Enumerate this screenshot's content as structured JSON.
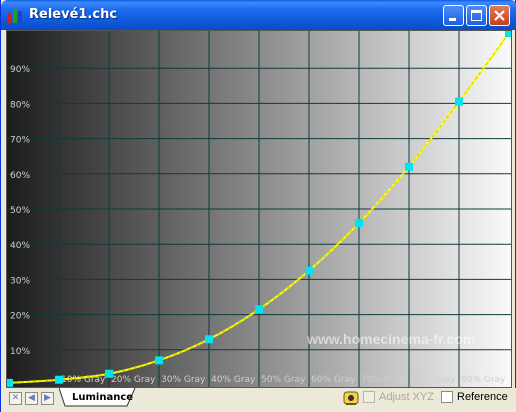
{
  "window": {
    "title": "Relevé1.chc",
    "buttons": {
      "minimize_icon": "minimize-icon",
      "maximize_icon": "maximize-icon",
      "close_icon": "close-icon"
    }
  },
  "watermark": "www.homecinema-fr.com",
  "tab": {
    "label": "Luminance"
  },
  "statusbar": {
    "adjust_label": "Adjust XYZ",
    "reference_label": "Reference",
    "adjust_checked": false,
    "reference_checked": false
  },
  "colors": {
    "curve": "#ffff00",
    "curve_dash": "#cccc00",
    "markers": "#00e5f0",
    "grid": "#0f3a3a",
    "label": "#cfcfcf"
  },
  "chart_data": {
    "type": "line",
    "y_ticks": [
      "10%",
      "20%",
      "30%",
      "40%",
      "50%",
      "60%",
      "70%",
      "80%",
      "90%"
    ],
    "x_ticks": [
      "10% Gray",
      "20% Gray",
      "30% Gray",
      "40% Gray",
      "50% Gray",
      "60% Gray",
      "70% Gray",
      "80% Gray",
      "90% Gray"
    ],
    "ylim": [
      0,
      100
    ],
    "xlim": [
      0,
      100
    ],
    "grid": true,
    "series": [
      {
        "x": [
          0,
          10,
          20,
          30,
          40,
          50,
          60,
          70,
          80,
          90,
          100
        ],
        "y": [
          0.6,
          1.5,
          3.2,
          7.0,
          13.0,
          21.5,
          32.5,
          46.0,
          62.0,
          80.5,
          100.0
        ]
      }
    ]
  }
}
